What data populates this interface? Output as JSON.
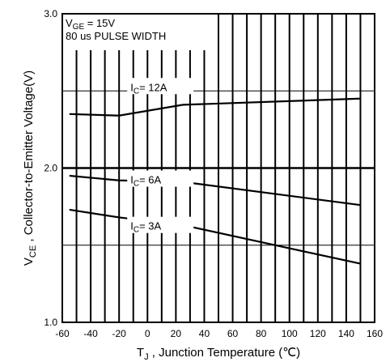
{
  "chart_data": {
    "type": "line",
    "title": "",
    "xlabel": {
      "main": "T",
      "sub": "J",
      "rest": " , Junction Temperature (℃)"
    },
    "ylabel": {
      "main": "V",
      "sub": "CE",
      "rest": " , Collector-to-Emitter Voltage(V)"
    },
    "xlim": [
      -60,
      160
    ],
    "ylim": [
      1.0,
      3.0
    ],
    "x_ticks": [
      "-60",
      "-40",
      "-20",
      "0",
      "20",
      "40",
      "60",
      "80",
      "100",
      "120",
      "140",
      "160"
    ],
    "y_ticks": [
      {
        "label": "1.0",
        "value": 1.0
      },
      {
        "label": "2.0",
        "value": 2.0
      },
      {
        "label": "3.0",
        "value": 3.0
      }
    ],
    "grid": true,
    "conditions": [
      {
        "main": "V",
        "sub": "GE",
        "rest": " = 15V"
      },
      {
        "main": "80 us PULSE WIDTH",
        "sub": "",
        "rest": ""
      }
    ],
    "series": [
      {
        "name": "12A",
        "label": {
          "main": "I",
          "sub": "C",
          "rest": "=   12A"
        },
        "label_at": [
          -12,
          2.5
        ],
        "x": [
          -55,
          -20,
          25,
          150
        ],
        "y": [
          2.35,
          2.34,
          2.41,
          2.45
        ]
      },
      {
        "name": "6A",
        "label": {
          "main": "I",
          "sub": "C",
          "rest": "=     6A"
        },
        "label_at": [
          -12,
          1.9
        ],
        "x": [
          -55,
          -20,
          25,
          150
        ],
        "y": [
          1.95,
          1.92,
          1.91,
          1.76
        ]
      },
      {
        "name": "3A",
        "label": {
          "main": "I",
          "sub": "C",
          "rest": "=     3A"
        },
        "label_at": [
          -12,
          1.6
        ],
        "x": [
          -55,
          -20,
          25,
          150
        ],
        "y": [
          1.73,
          1.68,
          1.63,
          1.38
        ]
      }
    ]
  }
}
